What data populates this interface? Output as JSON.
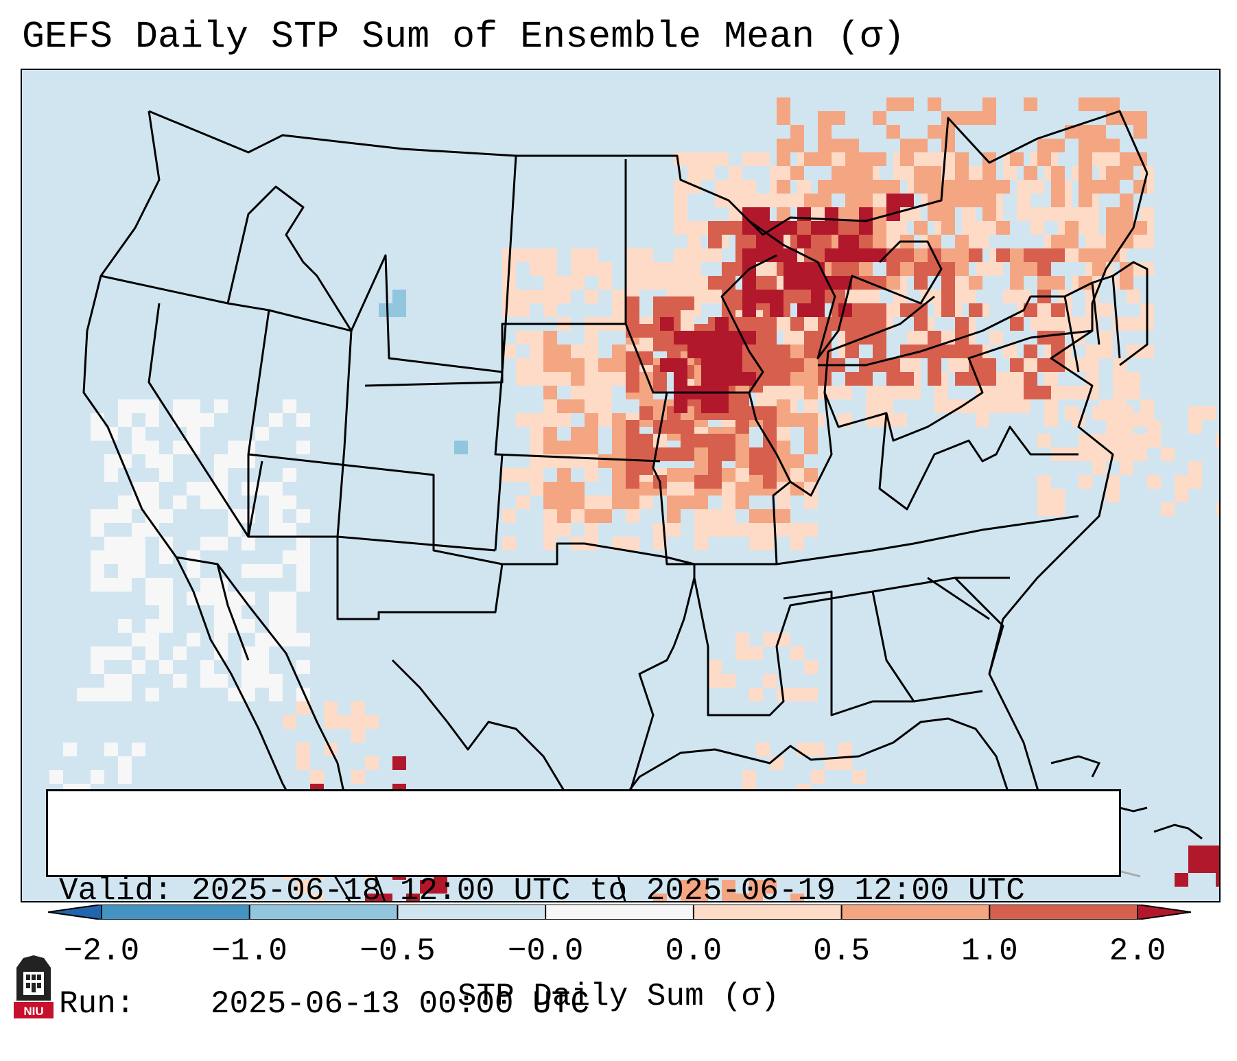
{
  "title": "GEFS Daily STP Sum of Ensemble Mean (σ)",
  "info": {
    "valid_label": "Valid:",
    "valid_value": "2025-06-18 12:00 UTC to 2025-06-19 12:00 UTC",
    "run_label": "Run:",
    "run_value": "2025-06-13 00:00 UTC"
  },
  "colorbar": {
    "label": "STP Daily Sum (σ)",
    "ticks": [
      "−2.0",
      "−1.0",
      "−0.5",
      "−0.0",
      "0.0",
      "0.5",
      "1.0",
      "2.0"
    ],
    "bins": [
      {
        "range": "< −2.0",
        "color": "#2166ac"
      },
      {
        "range": "−2.0 to −1.0",
        "color": "#4393c3"
      },
      {
        "range": "−1.0 to −0.5",
        "color": "#92c5de"
      },
      {
        "range": "−0.5 to −0.0",
        "color": "#d1e5f0"
      },
      {
        "range": "−0.0 to 0.0",
        "color": "#f7f7f7"
      },
      {
        "range": "0.0 to 0.5",
        "color": "#fddbc7"
      },
      {
        "range": "0.5 to 1.0",
        "color": "#f4a582"
      },
      {
        "range": "1.0 to 2.0",
        "color": "#d6604d"
      },
      {
        "range": "> 2.0",
        "color": "#b2182b"
      }
    ]
  },
  "map": {
    "region": "Contiguous United States",
    "ocean_color": "#d1e5f0",
    "border_color": "#000000"
  },
  "logo": {
    "text": "NIU",
    "name": "niu-logo"
  }
}
